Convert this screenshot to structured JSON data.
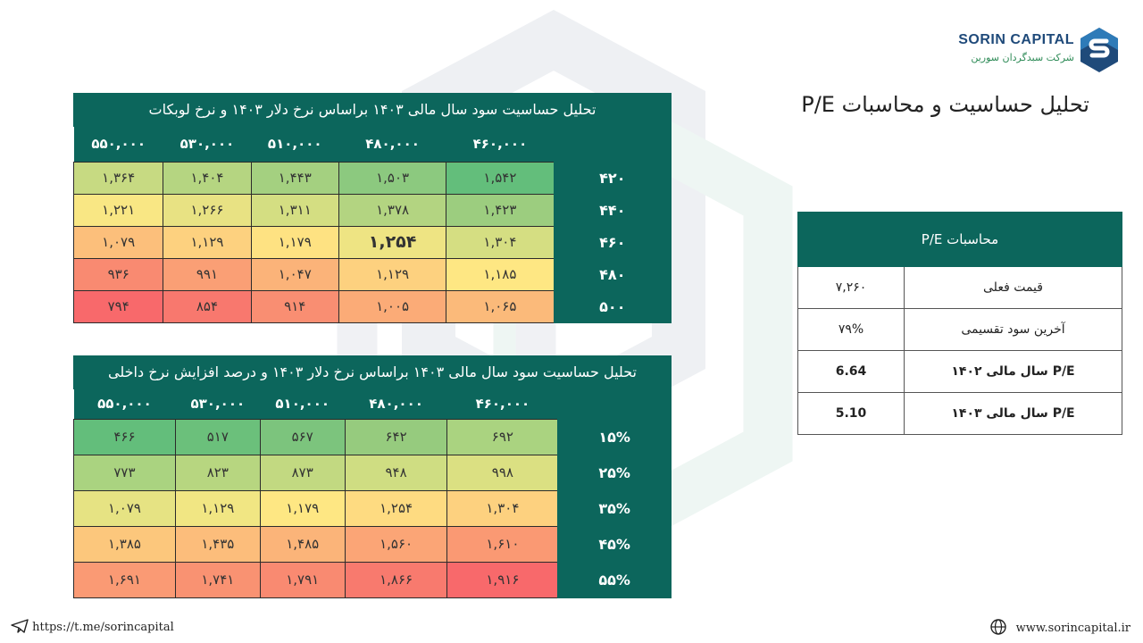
{
  "brand": {
    "name_en": "SORIN CAPITAL",
    "name_fa": "شرکت سبدگردان سورین",
    "accent": "#0c665c"
  },
  "page_title": "تحلیل حساسیت و محاسبات P/E",
  "table1": {
    "title": "تحلیل حساسیت سود سال مالی ۱۴۰۳ براساس نرخ دلار ۱۴۰۳  و نرخ لوبکات",
    "columns": [
      "۴۶۰,۰۰۰",
      "۴۸۰,۰۰۰",
      "۵۱۰,۰۰۰",
      "۵۳۰,۰۰۰",
      "۵۵۰,۰۰۰"
    ],
    "rows": [
      {
        "label": "۴۲۰",
        "cells": [
          "۱,۵۴۲",
          "۱,۵۰۳",
          "۱,۴۴۳",
          "۱,۴۰۴",
          "۱,۳۶۴"
        ],
        "colors": [
          "#63be7b",
          "#8cc97f",
          "#a4d080",
          "#b5d581",
          "#c7da82"
        ]
      },
      {
        "label": "۴۴۰",
        "cells": [
          "۱,۴۲۳",
          "۱,۳۷۸",
          "۱,۳۱۱",
          "۱,۲۶۶",
          "۱,۲۲۱"
        ],
        "colors": [
          "#9ccd7f",
          "#b3d481",
          "#d4de82",
          "#e8e283",
          "#f9e784"
        ]
      },
      {
        "label": "۴۶۰",
        "cells": [
          "۱,۳۰۴",
          "۱,۲۵۴",
          "۱,۱۷۹",
          "۱,۱۲۹",
          "۱,۰۷۹"
        ],
        "colors": [
          "#d5de82",
          "#eee483",
          "#fee282",
          "#fdd17f",
          "#fcbf7b"
        ]
      },
      {
        "label": "۴۸۰",
        "cells": [
          "۱,۱۸۵",
          "۱,۱۲۹",
          "۱,۰۴۷",
          "۹۹۱",
          "۹۳۶"
        ],
        "colors": [
          "#fee783",
          "#fdd17f",
          "#fbb379",
          "#fa9f75",
          "#f98a71"
        ]
      },
      {
        "label": "۵۰۰",
        "cells": [
          "۱,۰۶۵",
          "۱,۰۰۵",
          "۹۱۴",
          "۸۵۴",
          "۷۹۴"
        ],
        "colors": [
          "#fbba7a",
          "#fbab77",
          "#f98e72",
          "#f8786e",
          "#f8696b"
        ]
      }
    ],
    "bold_cell": [
      2,
      1
    ]
  },
  "table2": {
    "title": "تحلیل حساسیت سود سال مالی ۱۴۰۳ براساس نرخ دلار ۱۴۰۳  و  درصد افزایش نرخ داخلی",
    "columns": [
      "۴۶۰,۰۰۰",
      "۴۸۰,۰۰۰",
      "۵۱۰,۰۰۰",
      "۵۳۰,۰۰۰",
      "۵۵۰,۰۰۰"
    ],
    "rows": [
      {
        "label": "۱۵%",
        "cells": [
          "۶۹۲",
          "۶۴۲",
          "۵۶۷",
          "۵۱۷",
          "۴۶۶"
        ],
        "colors": [
          "#aad380",
          "#96cb7e",
          "#7cc47d",
          "#6bc07b",
          "#63be7b"
        ]
      },
      {
        "label": "۲۵%",
        "cells": [
          "۹۹۸",
          "۹۴۸",
          "۸۷۳",
          "۸۲۳",
          "۷۷۳"
        ],
        "colors": [
          "#dbe082",
          "#cfdd82",
          "#c2d981",
          "#b7d680",
          "#aad380"
        ]
      },
      {
        "label": "۳۵%",
        "cells": [
          "۱,۳۰۴",
          "۱,۲۵۴",
          "۱,۱۷۹",
          "۱,۱۲۹",
          "۱,۰۷۹"
        ],
        "colors": [
          "#fdd17f",
          "#fedb81",
          "#fee783",
          "#f1e683",
          "#e6e383"
        ]
      },
      {
        "label": "۴۵%",
        "cells": [
          "۱,۶۱۰",
          "۱,۵۶۰",
          "۱,۴۸۵",
          "۱,۴۳۵",
          "۱,۳۸۵"
        ],
        "colors": [
          "#fa9973",
          "#fba576",
          "#fbb479",
          "#fcbd7b",
          "#fcc77c"
        ]
      },
      {
        "label": "۵۵%",
        "cells": [
          "۱,۹۱۶",
          "۱,۸۶۶",
          "۱,۷۹۱",
          "۱,۷۴۱",
          "۱,۶۹۱"
        ],
        "colors": [
          "#f8696b",
          "#f87a6e",
          "#f98a71",
          "#f99272",
          "#fa9a74"
        ]
      }
    ]
  },
  "pe_table": {
    "header": "محاسبات P/E",
    "rows": [
      {
        "label": "قیمت فعلی",
        "value": "۷,۲۶۰",
        "bold": false
      },
      {
        "label": "آخرین سود تقسیمی",
        "value": "۷۹%",
        "bold": false
      },
      {
        "label": "P/E سال مالی ۱۴۰۲",
        "value": "6.64",
        "bold": true
      },
      {
        "label": "P/E سال مالی ۱۴۰۳",
        "value": "5.10",
        "bold": true
      }
    ]
  },
  "footer": {
    "telegram": "https://t.me/sorincapital",
    "website": "www.sorincapital.ir"
  }
}
